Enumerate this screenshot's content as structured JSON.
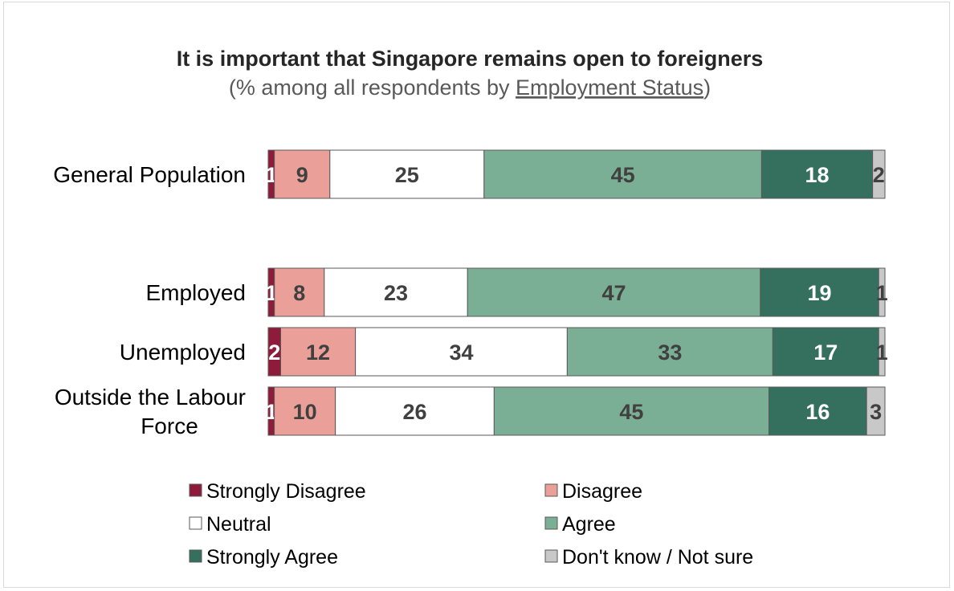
{
  "chart_data": {
    "type": "bar",
    "orientation": "horizontal",
    "stacked": true,
    "title": "It is important that Singapore remains open to foreigners",
    "subtitle_prefix": "(% among all respondents by ",
    "subtitle_link": "Employment Status",
    "subtitle_suffix": ")",
    "xlabel": "",
    "ylabel": "",
    "xlim": [
      0,
      100
    ],
    "grid": false,
    "legend_position": "bottom",
    "categories": [
      "General Population",
      "Employed",
      "Unemployed",
      "Outside the Labour Force"
    ],
    "category_lines": [
      [
        "General Population"
      ],
      [
        "Employed"
      ],
      [
        "Unemployed"
      ],
      [
        "Outside the Labour",
        "Force"
      ]
    ],
    "series": [
      {
        "name": "Strongly Disagree",
        "color": "#8e1b3a",
        "label_color": "#ffffff",
        "values": [
          1,
          1,
          2,
          1
        ]
      },
      {
        "name": "Disagree",
        "color": "#eaa099",
        "label_color": "#404040",
        "values": [
          9,
          8,
          12,
          10
        ]
      },
      {
        "name": "Neutral",
        "color": "#ffffff",
        "label_color": "#404040",
        "values": [
          25,
          23,
          34,
          26
        ]
      },
      {
        "name": "Agree",
        "color": "#7aae95",
        "label_color": "#404040",
        "values": [
          45,
          47,
          33,
          45
        ]
      },
      {
        "name": "Strongly Agree",
        "color": "#35705f",
        "label_color": "#ffffff",
        "values": [
          18,
          19,
          17,
          16
        ]
      },
      {
        "name": "Don't know / Not sure",
        "color": "#c8c8c8",
        "label_color": "#404040",
        "values": [
          2,
          1,
          1,
          3
        ]
      }
    ]
  }
}
